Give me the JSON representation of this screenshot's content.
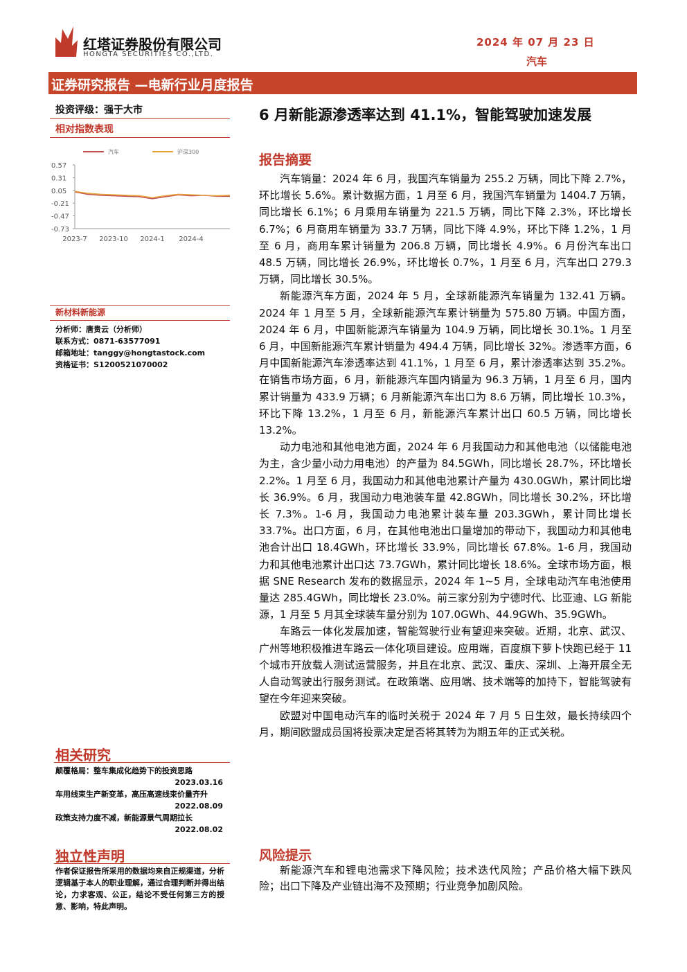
{
  "header": {
    "company": "红塔证券股份有限公司",
    "company_en": "HONGTA SECURITIES CO.,LTD.",
    "date": "2024 年 07 月 23 日",
    "industry": "汽车",
    "banner": "证券研究报告 —电新行业月度报告"
  },
  "sidebar": {
    "rating": "投资评级：强于大市",
    "chart_heading": "相对指数表现",
    "sector": "新材料新能源",
    "analyst": [
      "分析师：唐贵云（分析师）",
      "联系方式：0871-63577091",
      "邮箱地址：tanggy@hongtastock.com",
      "资格证书：S1200521070002"
    ],
    "related_heading": "相关研究",
    "related": [
      {
        "title": "颠覆格局：整车集成化趋势下的投资思路",
        "date": "2023.03.16"
      },
      {
        "title": "车用线束生产新变革，高压高速线束价量齐升",
        "date": "2022.08.09"
      },
      {
        "title": "政策支持力度不减，新能源景气周期拉长",
        "date": "2022.08.02"
      }
    ],
    "statement_heading": "独立性声明",
    "statement": "作者保证报告所采用的数据均来自正规渠道，分析逻辑基于本人的职业理解，通过合理判断并得出结论，力求客观、公正，结论不受任何第三方的授意、影响，特此声明。"
  },
  "chart_data": {
    "type": "line",
    "categories": [
      "2023-7",
      null,
      null,
      "2023-10",
      null,
      null,
      "2024-1",
      null,
      null,
      "2024-4",
      null,
      null,
      null
    ],
    "series": [
      {
        "name": "汽车",
        "color": "#c0504d",
        "values": [
          0.02,
          -0.03,
          -0.05,
          -0.06,
          -0.07,
          -0.08,
          -0.12,
          -0.08,
          -0.04,
          -0.06,
          -0.05,
          -0.07,
          -0.07
        ]
      },
      {
        "name": "沪深300",
        "color": "#e8a33c",
        "values": [
          0.03,
          -0.01,
          -0.03,
          -0.04,
          -0.05,
          -0.06,
          -0.1,
          -0.06,
          -0.03,
          -0.04,
          -0.05,
          -0.06,
          -0.05
        ]
      }
    ],
    "ylim": [
      -0.73,
      0.57
    ],
    "yticks": [
      0.57,
      0.31,
      0.05,
      -0.21,
      -0.47,
      -0.73
    ],
    "legend": "top"
  },
  "main": {
    "title": "6 月新能源渗透率达到 41.1%，智能驾驶加速发展",
    "summary_heading": "报告摘要",
    "paragraphs": [
      "汽车销量：2024 年 6 月，我国汽车销量为 255.2 万辆，同比下降 2.7%，环比增长 5.6%。累计数据方面，1 月至 6 月，我国汽车销量为 1404.7 万辆，同比增长 6.1%；6 月乘用车销量为 221.5 万辆，同比下降 2.3%，环比增长 6.7%；6 月商用车销量为 33.7 万辆，同比下降 4.9%，环比下降 1.2%，1 月至 6 月，商用车累计销量为 206.8 万辆，同比增长 4.9%。6 月份汽车出口 48.5 万辆，同比增长 26.9%，环比增长 0.7%，1 月至 6 月，汽车出口 279.3 万辆，同比增长 30.5%。",
      "新能源汽车方面，2024 年 5 月，全球新能源汽车销量为 132.41 万辆。2024 年 1 月至 5 月，全球新能源汽车累计销量为 575.80 万辆。中国方面，2024 年 6 月，中国新能源汽车销量为 104.9 万辆，同比增长 30.1%。1 月至 6 月，中国新能源汽车累计销量为 494.4 万辆，同比增长 32%。渗透率方面，6 月中国新能源汽车渗透率达到 41.1%，1 月至 6 月，累计渗透率达到 35.2%。在销售市场方面，6 月，新能源汽车国内销量为 96.3 万辆，1 月至 6 月，国内累计销量为 433.9 万辆；6 月新能源汽车出口为 8.6 万辆，同比增长 10.3%，环比下降 13.2%，1 月至 6 月，新能源汽车累计出口 60.5 万辆，同比增长 13.2%。",
      "动力电池和其他电池方面，2024 年 6 月我国动力和其他电池（以储能电池为主，含少量小动力用电池）的产量为 84.5GWh，同比增长 28.7%，环比增长 2.2%。1 月至 6 月，我国动力和其他电池累计产量为 430.0GWh，累计同比增长 36.9%。6 月，我国动力电池装车量 42.8GWh，同比增长 30.2%，环比增长 7.3%。1-6 月，我国动力电池累计装车量 203.3GWh，累计同比增长 33.7%。出口方面，6 月，在其他电池出口量增加的带动下，我国动力和其他电池合计出口 18.4GWh，环比增长 33.9%，同比增长 67.8%。1-6 月，我国动力和其他电池累计出口达 73.7GWh，累计同比增长 18.6%。全球市场方面，根据 SNE Research 发布的数据显示，2024 年 1~5 月，全球电动汽车电池使用量达 285.4GWh，同比增长 23.0%。前三家分别为宁德时代、比亚迪、LG 新能源，1 月至 5 月其全球装车量分别为 107.0GWh、44.9GWh、35.9GWh。",
      "车路云一体化发展加速，智能驾驶行业有望迎来突破。近期，北京、武汉、广州等地积极推进车路云一体化项目建设。应用端，百度旗下萝卜快跑已经于 11 个城市开放载人测试运营服务，并且在北京、武汉、重庆、深圳、上海开展全无人自动驾驶出行服务测试。在政策端、应用端、技术端等的加持下，智能驾驶有望在今年迎来突破。",
      "欧盟对中国电动汽车的临时关税于 2024 年 7 月 5 日生效，最长持续四个月，期间欧盟成员国将投票决定是否将其转为为期五年的正式关税。"
    ],
    "risk_heading": "风险提示",
    "risk": "新能源汽车和锂电池需求下降风险；技术迭代风险；产品价格大幅下跌风险；出口下降及产业链出海不及预期；行业竞争加剧风险。"
  }
}
